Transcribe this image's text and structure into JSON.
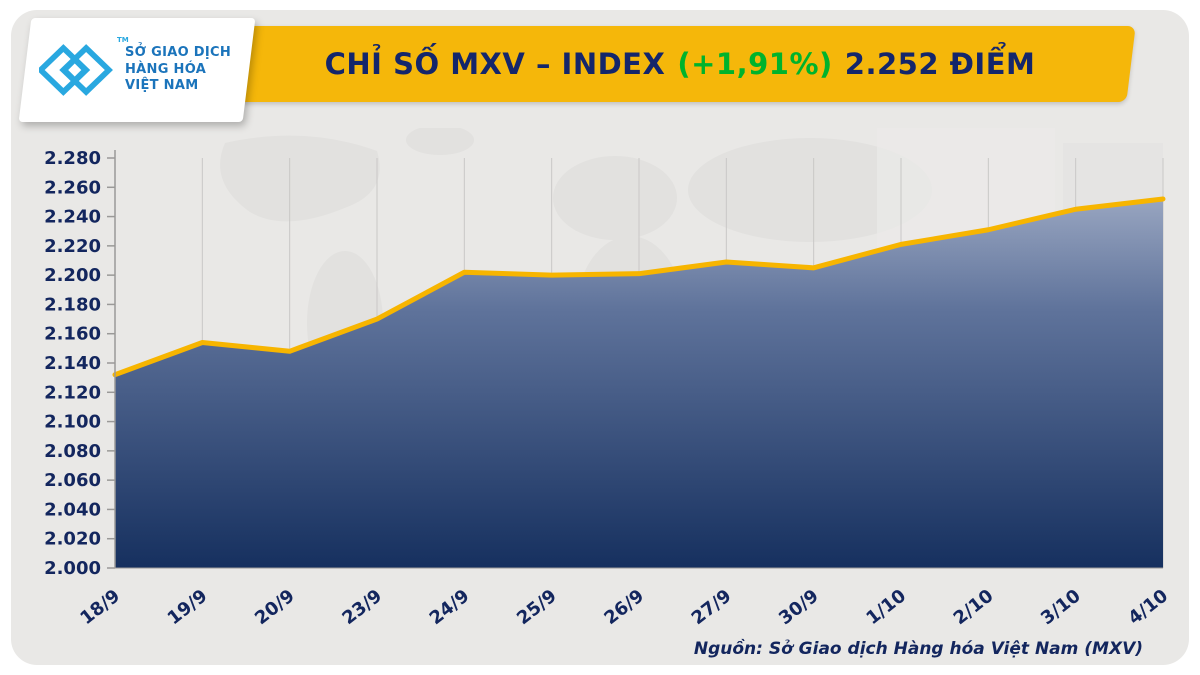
{
  "logo": {
    "line1": "SỞ GIAO DỊCH",
    "line2": "HÀNG HÓA",
    "line3": "VIỆT NAM",
    "tm": "TM",
    "icon_color": "#29a8e0",
    "text_color": "#1b74bb"
  },
  "banner": {
    "title_prefix": "CHỈ SỐ MXV – INDEX",
    "change": "(+1,91%)",
    "title_suffix": "2.252 ĐIỂM",
    "bg_color": "#f5b70a",
    "text_color": "#14266b",
    "change_color": "#00b32c"
  },
  "chart_data": {
    "type": "area",
    "title": "CHỈ SỐ MXV – INDEX (+1,91%) 2.252 ĐIỂM",
    "x": [
      "18/9",
      "19/9",
      "20/9",
      "23/9",
      "24/9",
      "25/9",
      "26/9",
      "27/9",
      "30/9",
      "1/10",
      "2/10",
      "3/10",
      "4/10"
    ],
    "values": [
      2132,
      2154,
      2148,
      2170,
      2202,
      2200,
      2201,
      2209,
      2205,
      2221,
      2231,
      2245,
      2252
    ],
    "ylim": [
      2000,
      2280
    ],
    "ytick_step": 20,
    "yticks": [
      "2.000",
      "2.020",
      "2.040",
      "2.060",
      "2.080",
      "2.100",
      "2.120",
      "2.140",
      "2.160",
      "2.180",
      "2.200",
      "2.220",
      "2.240",
      "2.260",
      "2.280"
    ],
    "xlabel": "",
    "ylabel": "",
    "grid": "vertical",
    "legend": "none",
    "line_color": "#f7b500",
    "fill_top": "#98a5c0",
    "fill_mid": "#5f739b",
    "fill_bottom": "#16305f",
    "grid_color": "#c9c8c7",
    "axis_color": "#9a9998",
    "tick_label_color": "#13265e"
  },
  "footer": {
    "source": "Nguồn: Sở Giao dịch Hàng hóa Việt Nam (MXV)"
  }
}
